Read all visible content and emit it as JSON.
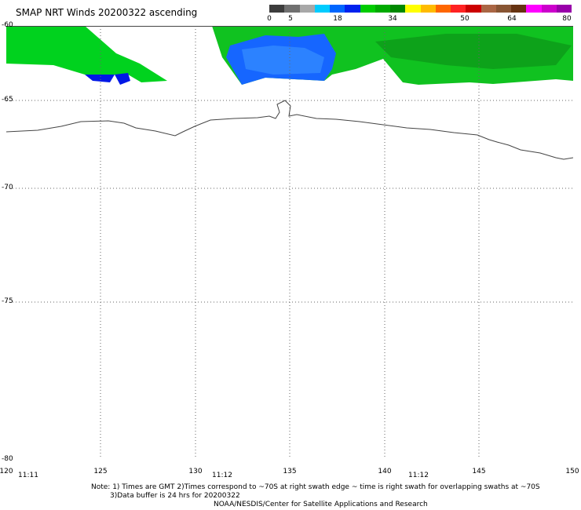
{
  "title": "SMAP NRT Winds 20200322 ascending",
  "colorbar": {
    "ticks": [
      "0",
      "5",
      "18",
      "34",
      "50",
      "64",
      "80"
    ],
    "colors": [
      "#3c3c3c",
      "#707070",
      "#a8a8a8",
      "#00ccff",
      "#0066ff",
      "#0022ee",
      "#00cc00",
      "#00aa00",
      "#008800",
      "#ffff00",
      "#ffbb00",
      "#ff6600",
      "#ff2222",
      "#cc0000",
      "#aa6644",
      "#885533",
      "#663311",
      "#ff00ff",
      "#cc00cc",
      "#9900aa"
    ]
  },
  "axes": {
    "lat_labels": [
      "-60",
      "-65",
      "-70",
      "-75",
      "-80"
    ],
    "lon_labels": [
      "120",
      "125",
      "130",
      "135",
      "140",
      "145",
      "150"
    ],
    "time_labels": [
      "11:11",
      "11:12",
      "11:12"
    ]
  },
  "notes": {
    "line1": "Note: 1) Times are GMT 2)Times correspond to ~70S at right swath edge ~ time is right swath for overlapping swaths at ~70S",
    "line2": "3)Data buffer is 24 hrs for 20200322",
    "line3": "NOAA/NESDIS/Center for Satellite Applications and Research"
  }
}
